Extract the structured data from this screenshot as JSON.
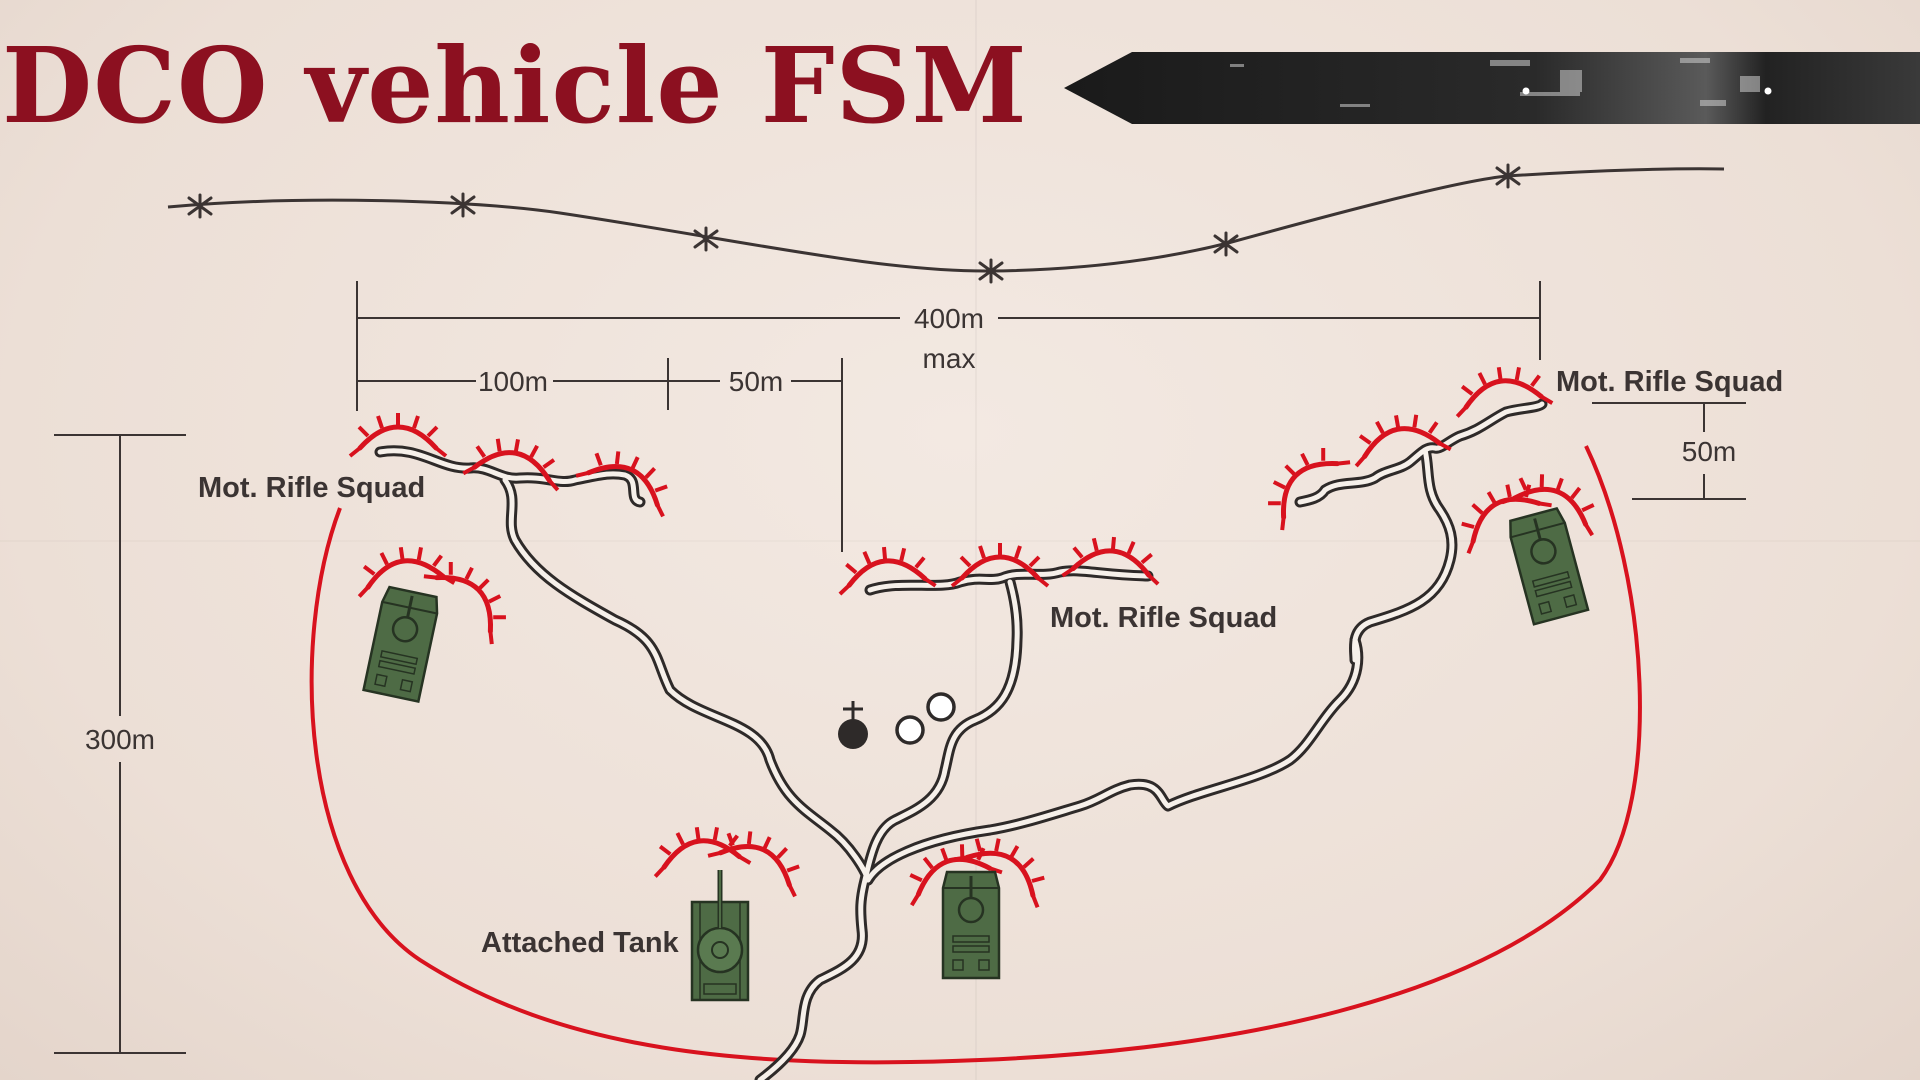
{
  "title": "DCO vehicle FSM",
  "colors": {
    "background": "#efe4dc",
    "title": "#8c1020",
    "perimeter": "#d8121e",
    "arc": "#d8121e",
    "vehicle": "#4e6b45",
    "ink": "#3b3433"
  },
  "labels": {
    "squad_left": "Mot. Rifle Squad",
    "squad_center": "Mot. Rifle Squad",
    "squad_right": "Mot. Rifle Squad",
    "attached_tank": "Attached Tank"
  },
  "measurements": {
    "width_total": "400m",
    "width_total_note": "max",
    "gap_100": "100m",
    "gap_50_top": "50m",
    "gap_50_right": "50m",
    "depth": "300m"
  },
  "icons": [
    "barbed-wire-obstacle",
    "fighting-position-arc",
    "bmp-vehicle-icon",
    "tank-icon",
    "command-post-marker"
  ]
}
